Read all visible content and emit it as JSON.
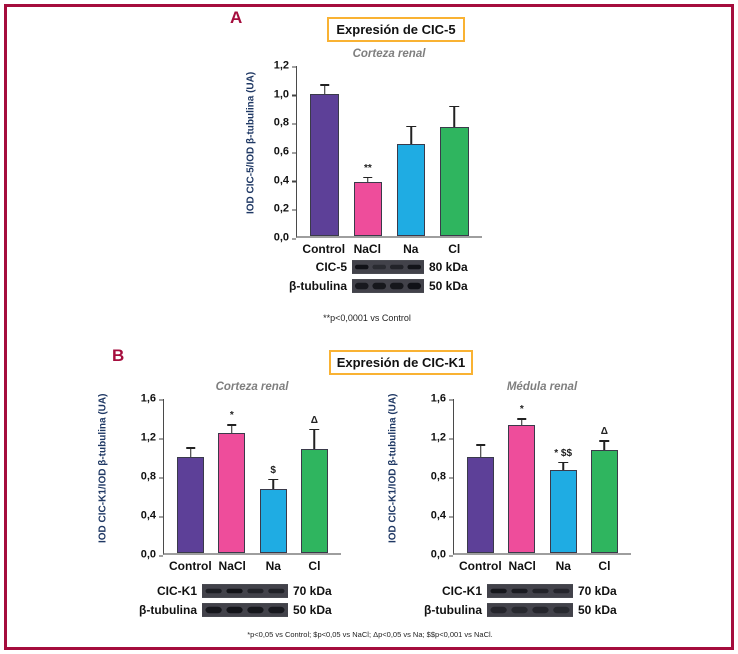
{
  "colors": {
    "accent_maroon": "#A50D3D",
    "title_box_border_orange": "#F9B233",
    "y_axis_label_navy": "#1F3864",
    "subtitle_gray": "#7F7F7F",
    "bar_purple": "#5D4098",
    "bar_pink": "#EE4D9B",
    "bar_blue": "#1FACE3",
    "bar_green": "#2FB55F"
  },
  "panelA": {
    "label": "A",
    "title": "Expresión de CIC-5",
    "footnote": "**p<0,0001 vs Control",
    "blots": {
      "rows": [
        {
          "protein": "CIC-5",
          "kda": "80 kDa"
        },
        {
          "protein": "β-tubulina",
          "kda": "50 kDa"
        }
      ]
    }
  },
  "panelB": {
    "label": "B",
    "title": "Expresión de CIC-K1",
    "footnote": "*p<0,05 vs Control; $p<0,05 vs NaCl; Δp<0,05 vs Na; $$p<0,001 vs NaCl.",
    "blots_left": {
      "rows": [
        {
          "protein": "CIC-K1",
          "kda": "70 kDa"
        },
        {
          "protein": "β-tubulina",
          "kda": "50 kDa"
        }
      ]
    },
    "blots_right": {
      "rows": [
        {
          "protein": "CIC-K1",
          "kda": "70 kDa"
        },
        {
          "protein": "β-tubulina",
          "kda": "50 kDa"
        }
      ]
    }
  },
  "chart_data": [
    {
      "type": "bar",
      "panel": "A",
      "title": "Corteza renal",
      "ylabel": "IOD CIC-5/IOD β-tubulina (UA)",
      "xlabel": "",
      "categories": [
        "Control",
        "NaCl",
        "Na",
        "Cl"
      ],
      "values": [
        1.0,
        0.38,
        0.65,
        0.77
      ],
      "errors": [
        0.07,
        0.04,
        0.13,
        0.15
      ],
      "significance": [
        "",
        "**",
        "",
        ""
      ],
      "ylim": [
        0,
        1.2
      ],
      "yticks": [
        "0,0",
        "0,2",
        "0,4",
        "0,6",
        "0,8",
        "1,0",
        "1,2"
      ],
      "bar_colors": [
        "#5D4098",
        "#EE4D9B",
        "#1FACE3",
        "#2FB55F"
      ],
      "grid": false,
      "legend": false
    },
    {
      "type": "bar",
      "panel": "B",
      "title": "Corteza renal",
      "ylabel": "IOD CIC-K1/IOD β-tubulina (UA)",
      "xlabel": "",
      "categories": [
        "Control",
        "NaCl",
        "Na",
        "Cl"
      ],
      "values": [
        1.0,
        1.25,
        0.67,
        1.08
      ],
      "errors": [
        0.1,
        0.09,
        0.1,
        0.21
      ],
      "significance": [
        "",
        "*",
        "$",
        "Δ"
      ],
      "ylim": [
        0,
        1.6
      ],
      "yticks": [
        "0,0",
        "0,4",
        "0,8",
        "1,2",
        "1,6"
      ],
      "bar_colors": [
        "#5D4098",
        "#EE4D9B",
        "#1FACE3",
        "#2FB55F"
      ],
      "grid": false,
      "legend": false
    },
    {
      "type": "bar",
      "panel": "B",
      "title": "Médula renal",
      "ylabel": "IOD CIC-K1/IOD β-tubulina (UA)",
      "xlabel": "",
      "categories": [
        "Control",
        "NaCl",
        "Na",
        "Cl"
      ],
      "values": [
        1.0,
        1.33,
        0.86,
        1.07
      ],
      "errors": [
        0.13,
        0.07,
        0.09,
        0.1
      ],
      "significance": [
        "",
        "*",
        "* $$",
        "Δ"
      ],
      "ylim": [
        0,
        1.6
      ],
      "yticks": [
        "0,0",
        "0,4",
        "0,8",
        "1,2",
        "1,6"
      ],
      "bar_colors": [
        "#5D4098",
        "#EE4D9B",
        "#1FACE3",
        "#2FB55F"
      ],
      "grid": false,
      "legend": false
    }
  ]
}
